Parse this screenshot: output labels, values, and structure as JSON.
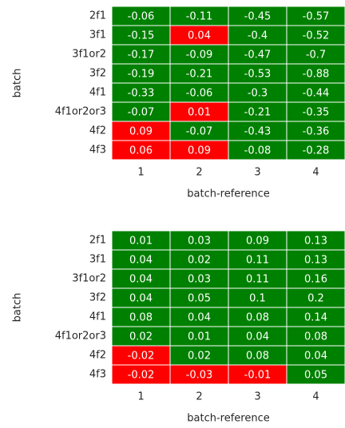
{
  "chart_data": [
    {
      "type": "heatmap",
      "x_label": "batch-reference",
      "y_label": "batch",
      "rows": [
        "2f1",
        "3f1",
        "3f1or2",
        "3f2",
        "4f1",
        "4f1or2or3",
        "4f2",
        "4f3"
      ],
      "columns": [
        "1",
        "2",
        "3",
        "4"
      ],
      "values": [
        [
          -0.06,
          -0.11,
          -0.45,
          -0.57
        ],
        [
          -0.15,
          0.04,
          -0.4,
          -0.52
        ],
        [
          -0.17,
          -0.09,
          -0.47,
          -0.7
        ],
        [
          -0.19,
          -0.21,
          -0.53,
          -0.88
        ],
        [
          -0.33,
          -0.06,
          -0.3,
          -0.44
        ],
        [
          -0.07,
          0.01,
          -0.21,
          -0.35
        ],
        [
          0.09,
          -0.07,
          -0.43,
          -0.36
        ],
        [
          0.06,
          0.09,
          -0.08,
          -0.28
        ]
      ],
      "colors": {
        "positive": "#ff0000",
        "negative": "#008000"
      }
    },
    {
      "type": "heatmap",
      "x_label": "batch-reference",
      "y_label": "batch",
      "rows": [
        "2f1",
        "3f1",
        "3f1or2",
        "3f2",
        "4f1",
        "4f1or2or3",
        "4f2",
        "4f3"
      ],
      "columns": [
        "1",
        "2",
        "3",
        "4"
      ],
      "values": [
        [
          0.01,
          0.03,
          0.09,
          0.13
        ],
        [
          0.04,
          0.02,
          0.11,
          0.13
        ],
        [
          0.04,
          0.03,
          0.11,
          0.16
        ],
        [
          0.04,
          0.05,
          0.1,
          0.2
        ],
        [
          0.08,
          0.04,
          0.08,
          0.14
        ],
        [
          0.02,
          0.01,
          0.04,
          0.08
        ],
        [
          -0.02,
          0.02,
          0.08,
          0.04
        ],
        [
          -0.02,
          -0.03,
          -0.01,
          0.05
        ]
      ],
      "colors": {
        "positive": "#008000",
        "negative": "#ff0000"
      }
    }
  ]
}
